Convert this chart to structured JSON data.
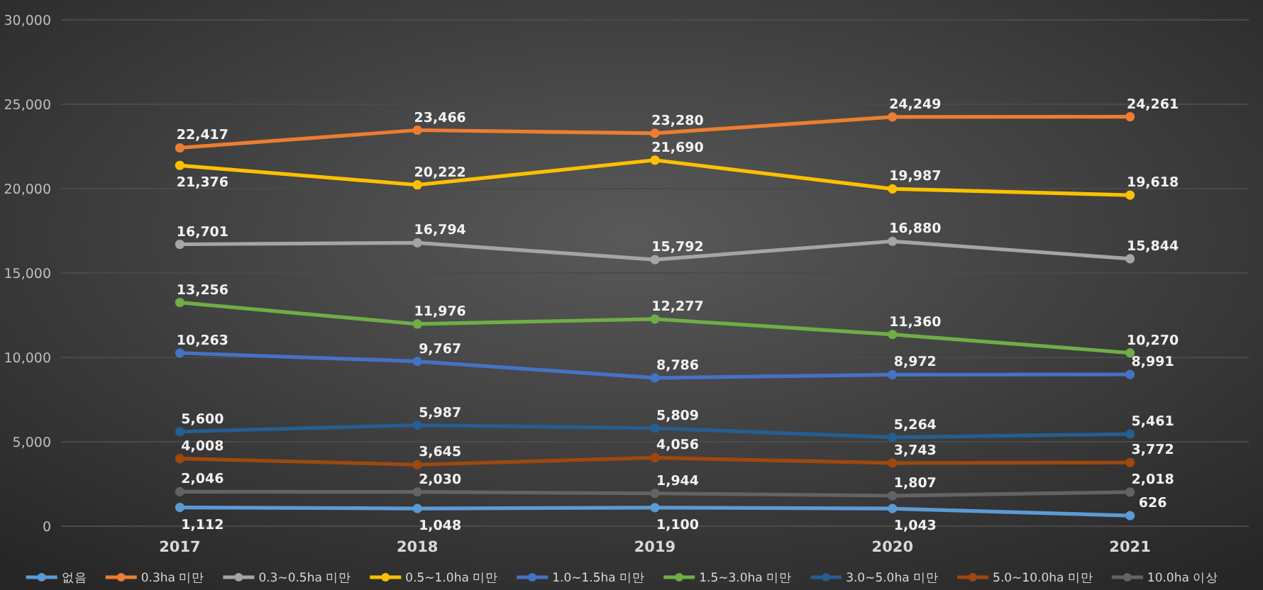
{
  "chart_data": {
    "type": "line",
    "categories": [
      "2017",
      "2018",
      "2019",
      "2020",
      "2021"
    ],
    "series": [
      {
        "name": "없음",
        "color": "#5b9bd5",
        "values": [
          1112,
          1048,
          1100,
          1043,
          626
        ],
        "value_labels": [
          "1,112",
          "1,048",
          "1,100",
          "1,043",
          "626"
        ]
      },
      {
        "name": "0.3ha 미만",
        "color": "#ed7d31",
        "values": [
          22417,
          23466,
          23280,
          24249,
          24261
        ],
        "value_labels": [
          "22,417",
          "23,466",
          "23,280",
          "24,249",
          "24,261"
        ]
      },
      {
        "name": "0.3~0.5ha 미만",
        "color": "#a5a5a5",
        "values": [
          16701,
          16794,
          15792,
          16880,
          15844
        ],
        "value_labels": [
          "16,701",
          "16,794",
          "15,792",
          "16,880",
          "15,844"
        ]
      },
      {
        "name": "0.5~1.0ha 미만",
        "color": "#ffc000",
        "values": [
          21376,
          20222,
          21690,
          19987,
          19618
        ],
        "value_labels": [
          "21,376",
          "20,222",
          "21,690",
          "19,987",
          "19,618"
        ]
      },
      {
        "name": "1.0~1.5ha 미만",
        "color": "#4472c4",
        "values": [
          10263,
          9767,
          8786,
          8972,
          8991
        ],
        "value_labels": [
          "10,263",
          "9,767",
          "8,786",
          "8,972",
          "8,991"
        ]
      },
      {
        "name": "1.5~3.0ha 미만",
        "color": "#70ad47",
        "values": [
          13256,
          11976,
          12277,
          11360,
          10270
        ],
        "value_labels": [
          "13,256",
          "11,976",
          "12,277",
          "11,360",
          "10,270"
        ]
      },
      {
        "name": "3.0~5.0ha 미만",
        "color": "#255e91",
        "values": [
          5600,
          5987,
          5809,
          5264,
          5461
        ],
        "value_labels": [
          "5,600",
          "5,987",
          "5,809",
          "5,264",
          "5,461"
        ]
      },
      {
        "name": "5.0~10.0ha 미만",
        "color": "#9e480e",
        "values": [
          4008,
          3645,
          4056,
          3743,
          3772
        ],
        "value_labels": [
          "4,008",
          "3,645",
          "4,056",
          "3,743",
          "3,772"
        ]
      },
      {
        "name": "10.0ha 이상",
        "color": "#636363",
        "values": [
          2046,
          2030,
          1944,
          1807,
          2018
        ],
        "value_labels": [
          "2,046",
          "2,030",
          "1,944",
          "1,807",
          "2,018"
        ]
      }
    ],
    "ylim": [
      0,
      30000
    ],
    "yticks": [
      {
        "value": 0,
        "label": "0"
      },
      {
        "value": 5000,
        "label": "5,000"
      },
      {
        "value": 10000,
        "label": "10,000"
      },
      {
        "value": 15000,
        "label": "15,000"
      },
      {
        "value": 20000,
        "label": "20,000"
      },
      {
        "value": 25000,
        "label": "25,000"
      },
      {
        "value": 30000,
        "label": "30,000"
      }
    ],
    "grid": "y",
    "legend": "bottom",
    "marker": "circle",
    "line_style": "solid"
  }
}
